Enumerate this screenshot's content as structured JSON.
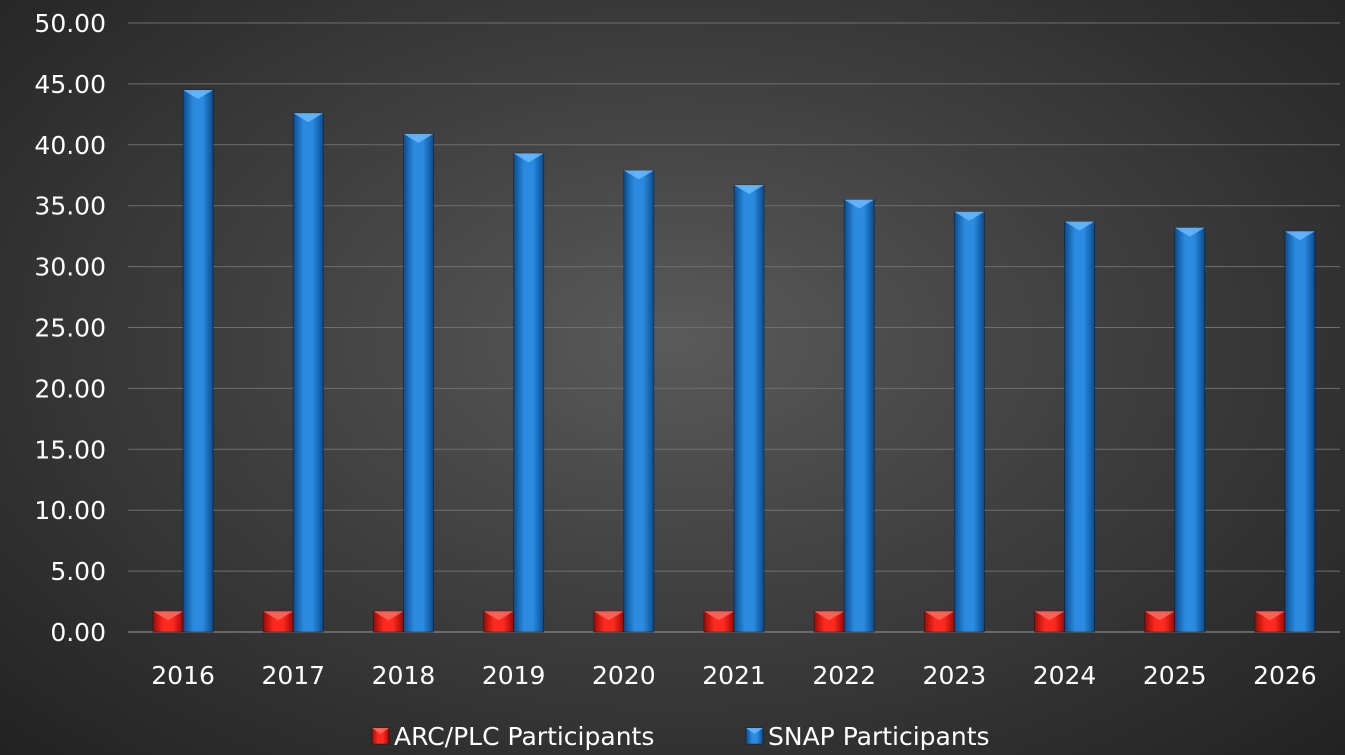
{
  "chart_data": {
    "type": "bar",
    "categories": [
      "2016",
      "2017",
      "2018",
      "2019",
      "2020",
      "2021",
      "2022",
      "2023",
      "2024",
      "2025",
      "2026"
    ],
    "series": [
      {
        "name": "ARC/PLC Participants",
        "values": [
          1.7,
          1.7,
          1.7,
          1.7,
          1.7,
          1.7,
          1.7,
          1.7,
          1.7,
          1.7,
          1.7
        ],
        "color": "#e8140f"
      },
      {
        "name": "SNAP Participants",
        "values": [
          44.5,
          42.6,
          40.9,
          39.3,
          37.9,
          36.7,
          35.5,
          34.5,
          33.7,
          33.2,
          32.9
        ],
        "color": "#1a73c8"
      }
    ],
    "ylim": [
      0,
      50
    ],
    "yticks": [
      "0.00",
      "5.00",
      "10.00",
      "15.00",
      "20.00",
      "25.00",
      "30.00",
      "35.00",
      "40.00",
      "45.00",
      "50.00"
    ],
    "grid": true,
    "legend_position": "bottom"
  }
}
